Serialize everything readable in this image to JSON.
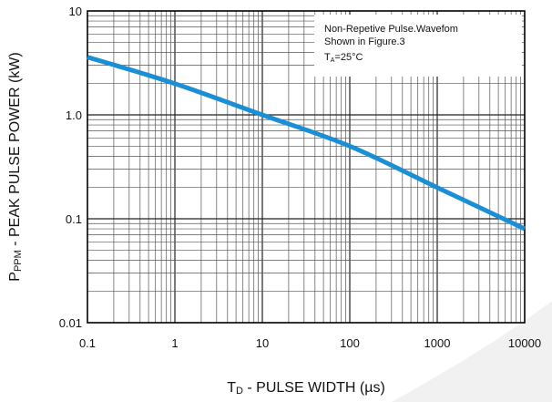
{
  "chart_data": {
    "type": "line",
    "xscale": "log",
    "yscale": "log",
    "xlim": [
      0.1,
      10000
    ],
    "ylim": [
      0.01,
      10
    ],
    "xticks": [
      0.1,
      1,
      10,
      100,
      1000,
      10000
    ],
    "xtick_labels": [
      "0.1",
      "1",
      "10",
      "100",
      "1000",
      "10000"
    ],
    "yticks": [
      0.01,
      0.1,
      1,
      10
    ],
    "ytick_labels": [
      "0.01",
      "0.1",
      "1.0",
      "10"
    ],
    "xlabel": {
      "main": "T",
      "sub": "D",
      "rest": " - PULSE WIDTH (µs)"
    },
    "ylabel": {
      "main": "P",
      "sub": "PPM",
      "rest": " - PEAK PULSE POWER  (kW)"
    },
    "grid": true,
    "annotation": {
      "line1": "Non-Repetive  Pulse.Wavefom",
      "line2": "Shown in Figure.3",
      "line3_main": "T",
      "line3_sub": "A",
      "line3_rest": "=25°C"
    },
    "series": [
      {
        "color": "#1a8fd6",
        "x": [
          0.1,
          1,
          10,
          100,
          1000,
          10000
        ],
        "y": [
          3.6,
          2.0,
          1.0,
          0.5,
          0.2,
          0.08
        ]
      }
    ]
  }
}
